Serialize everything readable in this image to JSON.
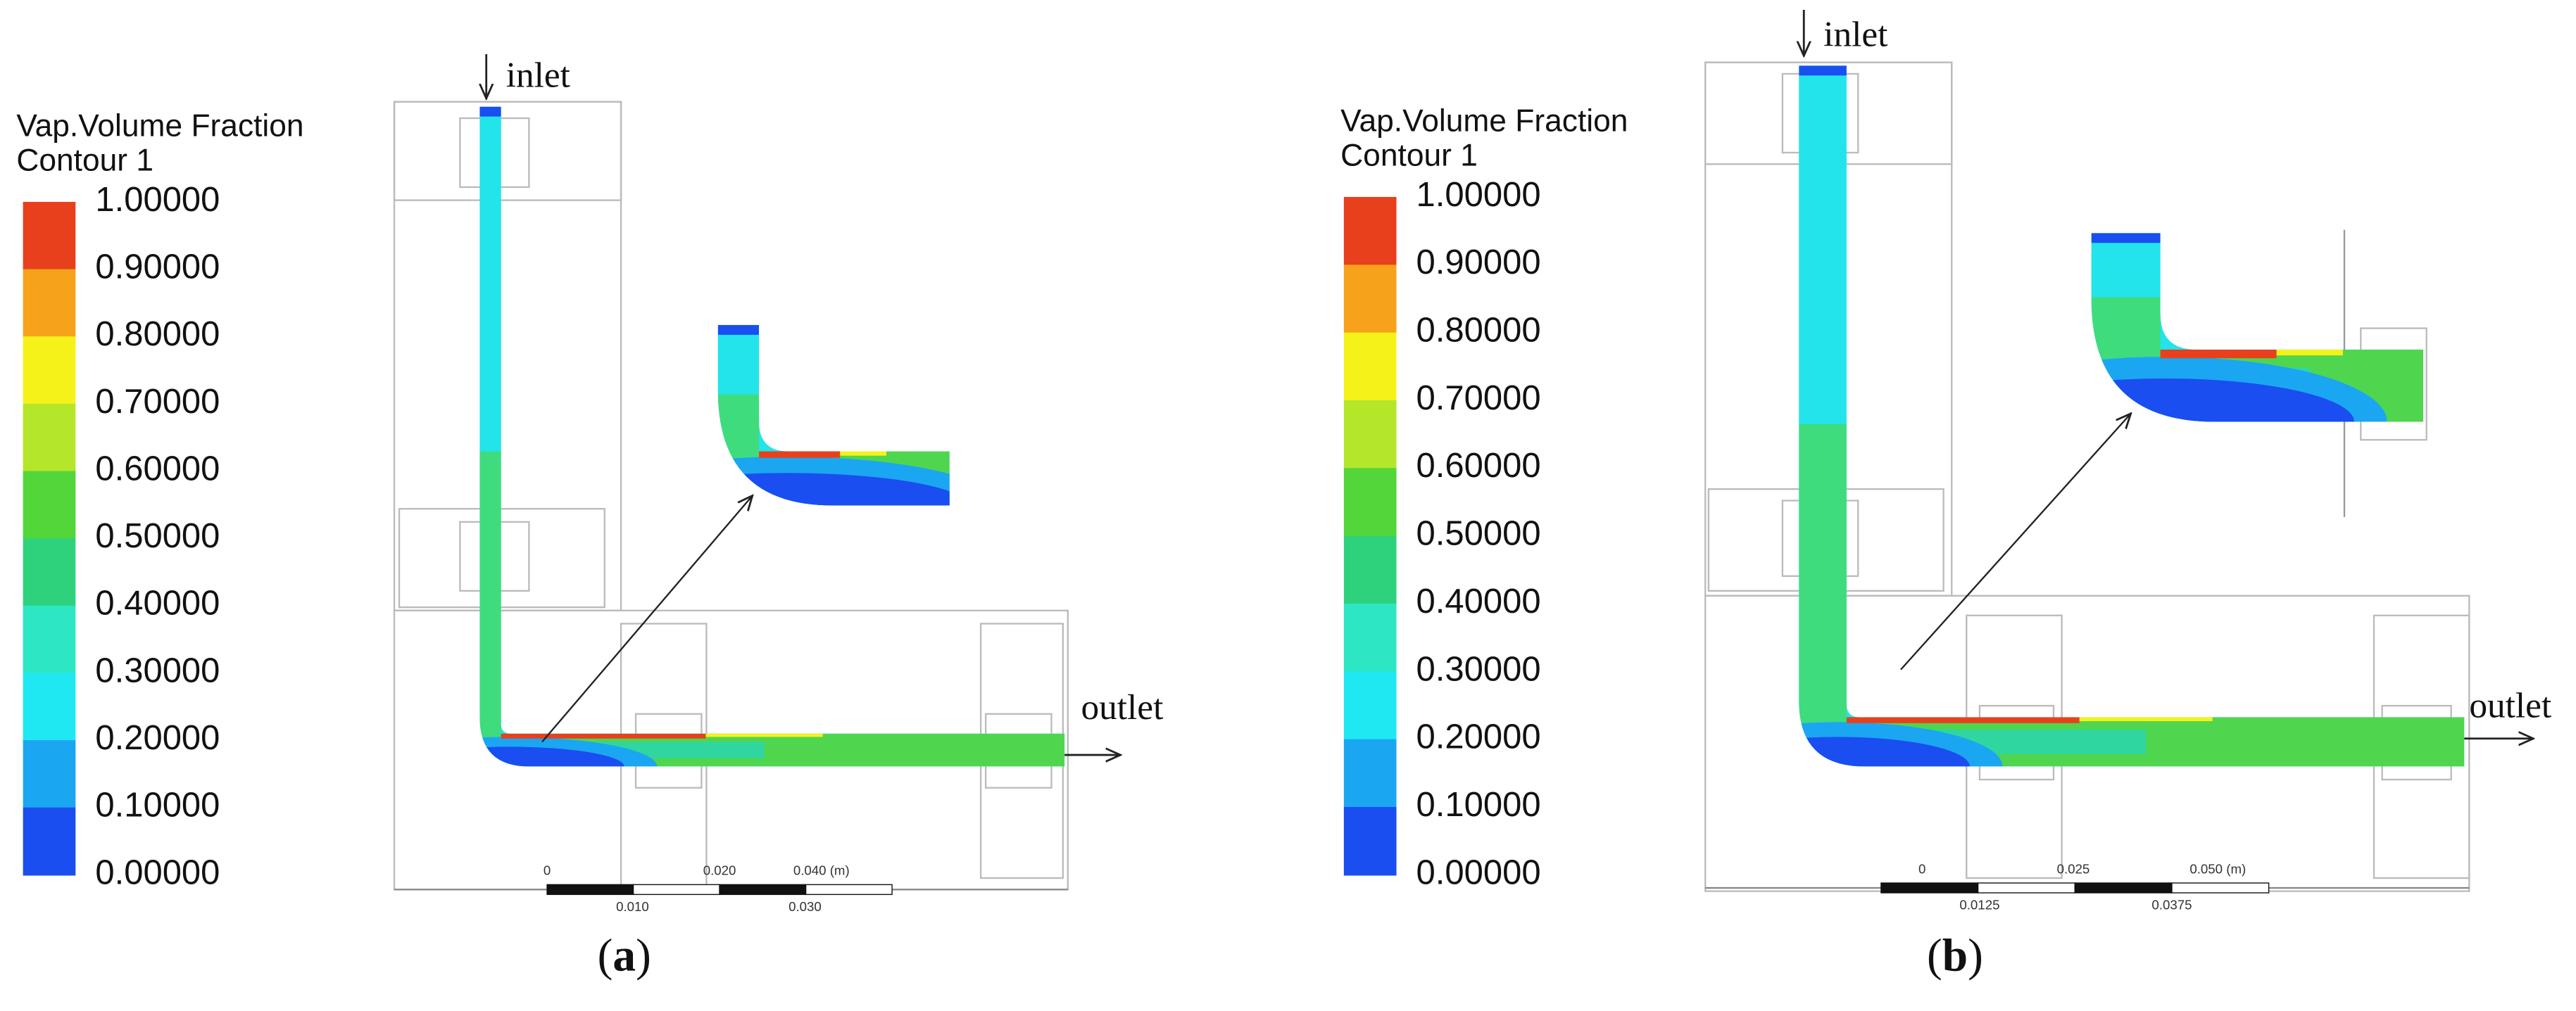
{
  "panels": [
    {
      "label": [
        "(",
        "a",
        ")"
      ],
      "legend_title": [
        "Vap.Volume Fraction",
        "Contour 1"
      ],
      "colorbar_labels": [
        "1.00000",
        "0.90000",
        "0.80000",
        "0.70000",
        "0.60000",
        "0.50000",
        "0.40000",
        "0.30000",
        "0.20000",
        "0.10000",
        "0.00000"
      ],
      "colorbar_colors": [
        "#e8401c",
        "#f7a21b",
        "#f5f21a",
        "#b4e62a",
        "#52d63a",
        "#2fd27c",
        "#2de6c4",
        "#1fe8f2",
        "#1ba6f2",
        "#1a4ef0"
      ],
      "inlet": "inlet",
      "outlet": "outlet",
      "scale_top": [
        "0",
        "0.020",
        "0.040 (m)"
      ],
      "scale_bottom": [
        "0.010",
        "0.030"
      ]
    },
    {
      "label": [
        "(",
        "b",
        ")"
      ],
      "legend_title": [
        "Vap.Volume Fraction",
        "Contour 1"
      ],
      "colorbar_labels": [
        "1.00000",
        "0.90000",
        "0.80000",
        "0.70000",
        "0.60000",
        "0.50000",
        "0.40000",
        "0.30000",
        "0.20000",
        "0.10000",
        "0.00000"
      ],
      "colorbar_colors": [
        "#e8401c",
        "#f7a21b",
        "#f5f21a",
        "#b4e62a",
        "#52d63a",
        "#2fd27c",
        "#2de6c4",
        "#1fe8f2",
        "#1ba6f2",
        "#1a4ef0"
      ],
      "inlet": "inlet",
      "outlet": "outlet",
      "scale_top": [
        "0",
        "0.025",
        "0.050 (m)"
      ],
      "scale_bottom": [
        "0.0125",
        "0.0375"
      ]
    }
  ]
}
